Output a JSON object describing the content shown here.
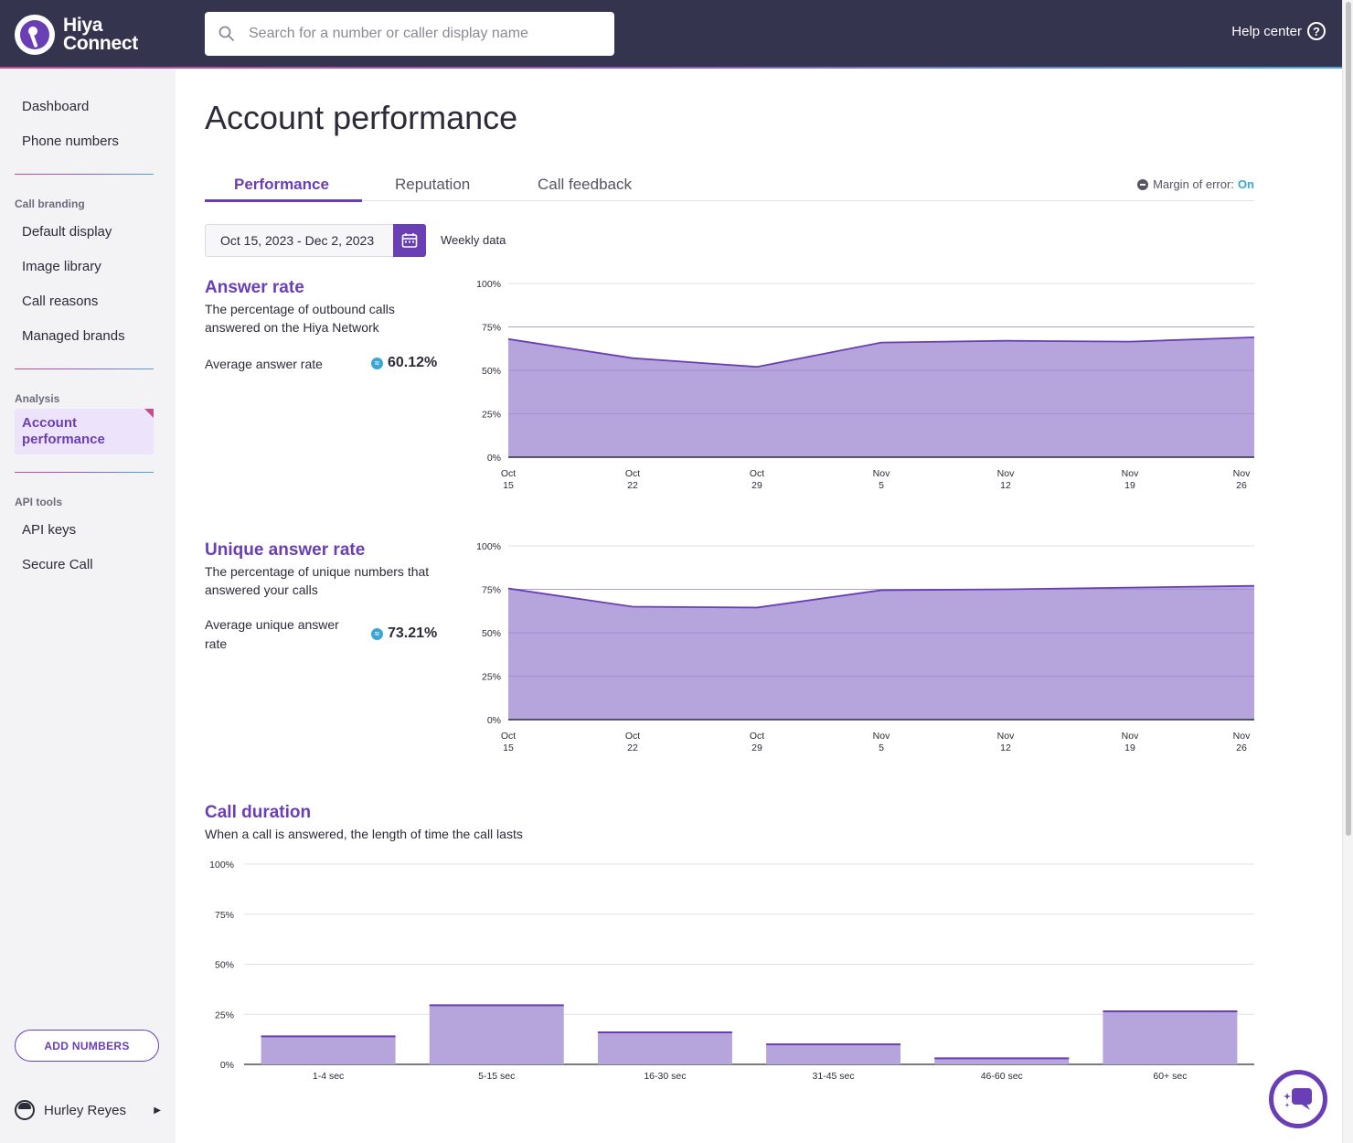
{
  "header": {
    "logo_line1": "Hiya",
    "logo_line2": "Connect",
    "search_placeholder": "Search for a number or caller display name",
    "help_label": "Help center"
  },
  "sidebar": {
    "top_items": [
      "Dashboard",
      "Phone numbers"
    ],
    "call_branding_label": "Call branding",
    "call_branding_items": [
      "Default display",
      "Image library",
      "Call reasons",
      "Managed brands"
    ],
    "analysis_label": "Analysis",
    "active_item": "Account performance",
    "api_label": "API tools",
    "api_items": [
      "API keys",
      "Secure Call"
    ],
    "add_numbers": "ADD NUMBERS",
    "user_name": "Hurley Reyes"
  },
  "page": {
    "title": "Account performance",
    "tabs": [
      "Performance",
      "Reputation",
      "Call feedback"
    ],
    "active_tab": "Performance",
    "margin_of_error_label": "Margin of error:",
    "margin_of_error_value": "On",
    "date_range": "Oct 15, 2023 - Dec 2, 2023",
    "granularity": "Weekly data"
  },
  "metrics": {
    "answer_rate": {
      "title": "Answer rate",
      "description": "The percentage of outbound calls answered on the Hiya Network",
      "avg_label": "Average answer rate",
      "avg_value": "60.12%"
    },
    "unique_answer_rate": {
      "title": "Unique answer rate",
      "description": "The percentage of unique numbers that answered your calls",
      "avg_label": "Average unique answer rate",
      "avg_value": "73.21%"
    },
    "call_duration": {
      "title": "Call duration",
      "description": "When a call is answered, the length of time the call lasts"
    }
  },
  "colors": {
    "accent": "#6a3fb5",
    "fill": "#b6a5dd",
    "info": "#3aa6d6"
  },
  "chart_data": [
    {
      "type": "area",
      "title": "Answer rate",
      "x": [
        "Oct 15",
        "Oct 22",
        "Oct 29",
        "Nov 5",
        "Nov 12",
        "Nov 19",
        "Nov 26"
      ],
      "x_ticks": [
        [
          "Oct",
          "15"
        ],
        [
          "Oct",
          "22"
        ],
        [
          "Oct",
          "29"
        ],
        [
          "Nov",
          "5"
        ],
        [
          "Nov",
          "12"
        ],
        [
          "Nov",
          "19"
        ],
        [
          "Nov",
          "26"
        ]
      ],
      "values": [
        68,
        57,
        52,
        66,
        67,
        66.5,
        69
      ],
      "ylim": [
        0,
        100
      ],
      "y_ticks": [
        "0%",
        "25%",
        "50%",
        "75%",
        "100%"
      ]
    },
    {
      "type": "area",
      "title": "Unique answer rate",
      "x": [
        "Oct 15",
        "Oct 22",
        "Oct 29",
        "Nov 5",
        "Nov 12",
        "Nov 19",
        "Nov 26"
      ],
      "x_ticks": [
        [
          "Oct",
          "15"
        ],
        [
          "Oct",
          "22"
        ],
        [
          "Oct",
          "29"
        ],
        [
          "Nov",
          "5"
        ],
        [
          "Nov",
          "12"
        ],
        [
          "Nov",
          "19"
        ],
        [
          "Nov",
          "26"
        ]
      ],
      "values": [
        75.5,
        65,
        64.5,
        74.5,
        75,
        76,
        77
      ],
      "ylim": [
        0,
        100
      ],
      "y_ticks": [
        "0%",
        "25%",
        "50%",
        "75%",
        "100%"
      ]
    },
    {
      "type": "bar",
      "title": "Call duration",
      "categories": [
        "1-4 sec",
        "5-15 sec",
        "16-30 sec",
        "31-45 sec",
        "46-60 sec",
        "60+ sec"
      ],
      "values": [
        14,
        29.5,
        16,
        10,
        3,
        26.5
      ],
      "ylim": [
        0,
        100
      ],
      "y_ticks": [
        "0%",
        "25%",
        "50%",
        "75%",
        "100%"
      ]
    }
  ]
}
